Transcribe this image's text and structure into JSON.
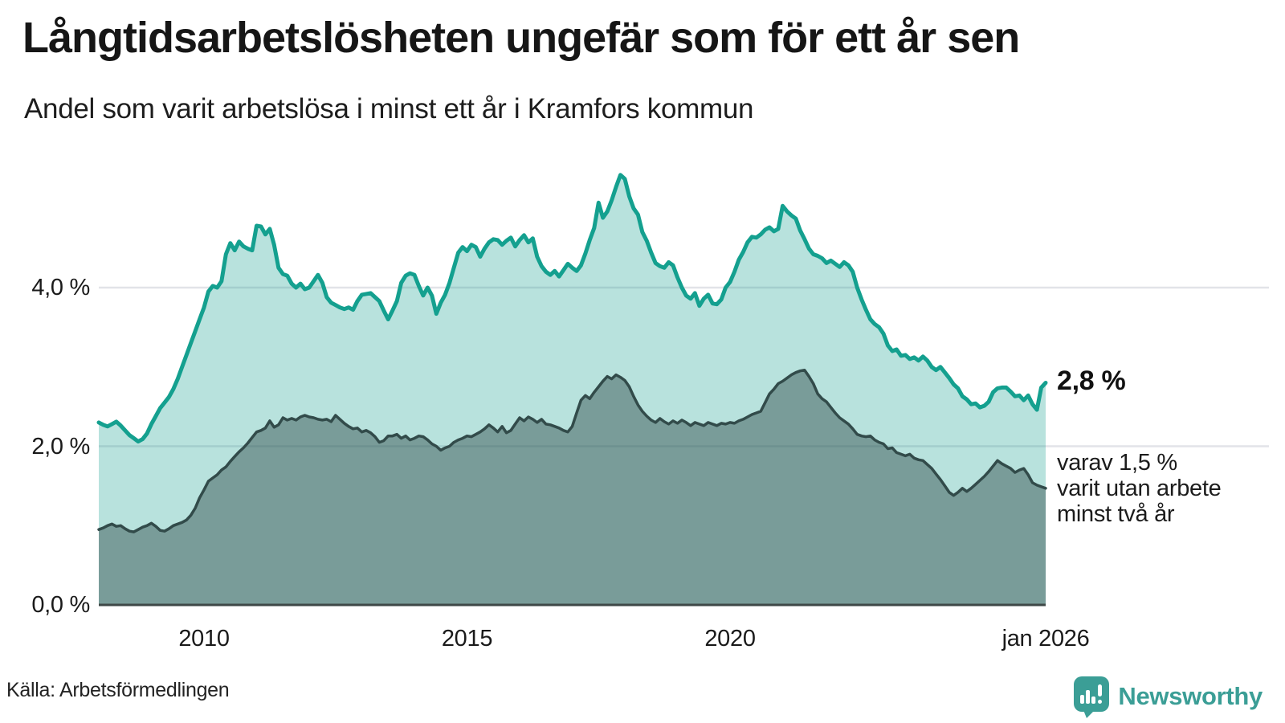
{
  "header": {
    "title": "Långtidsarbetslösheten ungefär som för ett år sen",
    "subtitle": "Andel som varit arbetslösa i minst ett år i Kramfors kommun"
  },
  "source": {
    "label": "Källa: Arbetsförmedlingen"
  },
  "branding": {
    "name": "Newsworthy",
    "logo_icon": "bar-chart-speech-bubble-icon",
    "color": "#3b9e96"
  },
  "colors": {
    "background": "#ffffff",
    "series1_stroke": "#14a08f",
    "series1_fill": "rgba(20,160,143,0.30)",
    "series2_stroke": "#324b4a",
    "series2_fill": "rgba(44,72,70,0.45)",
    "gridline": "#e2e3e8",
    "axis_line": "#3e4847",
    "text": "#1a1a1a"
  },
  "chart_data": {
    "type": "area",
    "title": "Långtidsarbetslösheten ungefär som för ett år sen",
    "subtitle": "Andel som varit arbetslösa i minst ett år i Kramfors kommun",
    "unit": "%",
    "interval": "monthly",
    "x_start": "2008-01",
    "x_end": "2026-01",
    "ylim": [
      0,
      5.6
    ],
    "grid": "horizontal",
    "legend_position": "none",
    "y_ticks": [
      {
        "label": "0,0 %",
        "value": 0
      },
      {
        "label": "2,0 %",
        "value": 2
      },
      {
        "label": "4,0 %",
        "value": 4
      }
    ],
    "x_ticks": [
      {
        "label": "2010",
        "month_index": 24
      },
      {
        "label": "2015",
        "month_index": 84
      },
      {
        "label": "2020",
        "month_index": 144
      },
      {
        "label": "jan 2026",
        "month_index": 216
      }
    ],
    "series": [
      {
        "name": "Andel arbetslösa minst ett år",
        "latest_label": "2,8 %",
        "values": [
          2.3,
          2.27,
          2.25,
          2.28,
          2.31,
          2.26,
          2.2,
          2.14,
          2.1,
          2.06,
          2.09,
          2.16,
          2.28,
          2.38,
          2.48,
          2.55,
          2.62,
          2.72,
          2.85,
          3.0,
          3.15,
          3.3,
          3.45,
          3.6,
          3.75,
          3.95,
          4.02,
          4.0,
          4.08,
          4.42,
          4.56,
          4.47,
          4.58,
          4.52,
          4.49,
          4.47,
          4.78,
          4.77,
          4.67,
          4.74,
          4.54,
          4.25,
          4.17,
          4.15,
          4.05,
          4.0,
          4.05,
          3.98,
          4.0,
          4.08,
          4.16,
          4.06,
          3.88,
          3.81,
          3.78,
          3.75,
          3.73,
          3.75,
          3.72,
          3.83,
          3.91,
          3.92,
          3.93,
          3.88,
          3.83,
          3.71,
          3.6,
          3.71,
          3.83,
          4.06,
          4.15,
          4.18,
          4.16,
          4.02,
          3.9,
          4.0,
          3.9,
          3.67,
          3.81,
          3.91,
          4.06,
          4.25,
          4.44,
          4.51,
          4.46,
          4.54,
          4.51,
          4.39,
          4.49,
          4.57,
          4.61,
          4.6,
          4.54,
          4.59,
          4.63,
          4.52,
          4.6,
          4.66,
          4.57,
          4.62,
          4.39,
          4.27,
          4.2,
          4.16,
          4.21,
          4.14,
          4.22,
          4.3,
          4.25,
          4.21,
          4.28,
          4.43,
          4.6,
          4.75,
          5.07,
          4.88,
          4.96,
          5.1,
          5.27,
          5.42,
          5.37,
          5.15,
          5.0,
          4.92,
          4.7,
          4.59,
          4.44,
          4.31,
          4.27,
          4.25,
          4.32,
          4.28,
          4.13,
          4.0,
          3.9,
          3.86,
          3.93,
          3.77,
          3.86,
          3.91,
          3.8,
          3.79,
          3.85,
          4.0,
          4.07,
          4.2,
          4.35,
          4.45,
          4.57,
          4.64,
          4.63,
          4.67,
          4.73,
          4.76,
          4.71,
          4.74,
          5.03,
          4.96,
          4.91,
          4.87,
          4.72,
          4.61,
          4.49,
          4.42,
          4.4,
          4.37,
          4.31,
          4.34,
          4.3,
          4.26,
          4.32,
          4.28,
          4.2,
          4.0,
          3.85,
          3.72,
          3.6,
          3.54,
          3.5,
          3.42,
          3.27,
          3.2,
          3.22,
          3.14,
          3.15,
          3.1,
          3.12,
          3.08,
          3.13,
          3.08,
          3.0,
          2.96,
          3.0,
          2.93,
          2.86,
          2.78,
          2.73,
          2.63,
          2.59,
          2.53,
          2.54,
          2.49,
          2.51,
          2.56,
          2.68,
          2.73,
          2.74,
          2.74,
          2.69,
          2.63,
          2.64,
          2.58,
          2.64,
          2.53,
          2.46,
          2.74,
          2.8
        ]
      },
      {
        "name": "Andel arbetslösa minst två år",
        "latest_label": "1,5 %",
        "values": [
          0.95,
          0.97,
          1.0,
          1.02,
          0.99,
          1.0,
          0.96,
          0.93,
          0.92,
          0.95,
          0.98,
          1.0,
          1.03,
          0.99,
          0.94,
          0.93,
          0.96,
          1.0,
          1.02,
          1.04,
          1.07,
          1.13,
          1.22,
          1.35,
          1.45,
          1.56,
          1.6,
          1.64,
          1.7,
          1.74,
          1.81,
          1.87,
          1.93,
          1.98,
          2.04,
          2.11,
          2.18,
          2.2,
          2.23,
          2.32,
          2.24,
          2.27,
          2.36,
          2.33,
          2.35,
          2.33,
          2.37,
          2.39,
          2.37,
          2.36,
          2.34,
          2.33,
          2.34,
          2.31,
          2.39,
          2.34,
          2.29,
          2.25,
          2.22,
          2.23,
          2.18,
          2.2,
          2.17,
          2.12,
          2.05,
          2.07,
          2.13,
          2.13,
          2.15,
          2.1,
          2.13,
          2.08,
          2.1,
          2.13,
          2.12,
          2.08,
          2.03,
          2.0,
          1.95,
          1.98,
          2.0,
          2.05,
          2.08,
          2.1,
          2.13,
          2.12,
          2.15,
          2.18,
          2.22,
          2.27,
          2.23,
          2.18,
          2.25,
          2.17,
          2.2,
          2.28,
          2.36,
          2.32,
          2.37,
          2.34,
          2.3,
          2.34,
          2.28,
          2.27,
          2.25,
          2.23,
          2.2,
          2.18,
          2.25,
          2.42,
          2.58,
          2.64,
          2.6,
          2.68,
          2.75,
          2.82,
          2.88,
          2.85,
          2.9,
          2.87,
          2.83,
          2.75,
          2.63,
          2.52,
          2.44,
          2.38,
          2.33,
          2.3,
          2.35,
          2.31,
          2.28,
          2.32,
          2.29,
          2.33,
          2.3,
          2.26,
          2.3,
          2.28,
          2.26,
          2.3,
          2.28,
          2.26,
          2.29,
          2.28,
          2.3,
          2.29,
          2.32,
          2.34,
          2.37,
          2.4,
          2.42,
          2.44,
          2.55,
          2.66,
          2.72,
          2.79,
          2.82,
          2.86,
          2.9,
          2.93,
          2.95,
          2.96,
          2.88,
          2.79,
          2.66,
          2.6,
          2.56,
          2.49,
          2.42,
          2.36,
          2.32,
          2.28,
          2.22,
          2.15,
          2.13,
          2.12,
          2.13,
          2.08,
          2.05,
          2.03,
          1.97,
          1.98,
          1.92,
          1.9,
          1.88,
          1.9,
          1.85,
          1.83,
          1.82,
          1.77,
          1.72,
          1.65,
          1.58,
          1.5,
          1.42,
          1.38,
          1.42,
          1.47,
          1.43,
          1.47,
          1.52,
          1.57,
          1.62,
          1.68,
          1.75,
          1.82,
          1.78,
          1.75,
          1.72,
          1.67,
          1.7,
          1.72,
          1.64,
          1.54,
          1.51,
          1.49,
          1.47
        ]
      }
    ],
    "annotations": [
      {
        "text": "2,8 %",
        "attached_to": "series1_end",
        "style": "bold"
      },
      {
        "lines": [
          "varav 1,5 %",
          "varit utan arbete",
          "minst två år"
        ],
        "attached_to": "series2_end",
        "style": "regular"
      }
    ]
  }
}
